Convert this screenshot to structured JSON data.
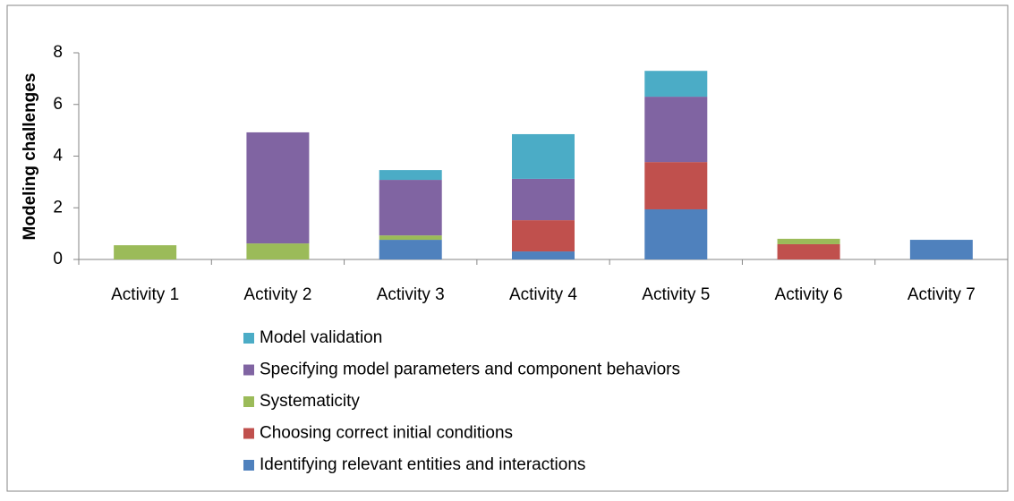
{
  "chart_data": {
    "type": "stacked_bar",
    "y_label": "Modeling challenges",
    "categories": [
      "Activity 1",
      "Activity 2",
      "Activity 3",
      "Activity 4",
      "Activity 5",
      "Activity 6",
      "Activity 7"
    ],
    "series": [
      {
        "name": "Identifying relevant entities and interactions",
        "color": "#4f81bd",
        "values": [
          0,
          0,
          0.76,
          0.31,
          1.94,
          0,
          0.76
        ]
      },
      {
        "name": "Choosing correct initial conditions",
        "color": "#c0504d",
        "values": [
          0,
          0,
          0,
          1.21,
          1.83,
          0.59,
          0
        ]
      },
      {
        "name": "Systematicity",
        "color": "#9bbb59",
        "values": [
          0.55,
          0.62,
          0.17,
          0,
          0,
          0.21,
          0
        ]
      },
      {
        "name": "Specifying model parameters and component behaviors",
        "color": "#8064a2",
        "values": [
          0,
          4.3,
          2.15,
          1.6,
          2.53,
          0,
          0
        ]
      },
      {
        "name": "Model validation",
        "color": "#4bacc6",
        "values": [
          0,
          0,
          0.38,
          1.73,
          1.0,
          0,
          0
        ]
      }
    ],
    "ylim": [
      0,
      8
    ],
    "yticks": [
      0,
      2,
      4,
      6,
      8
    ],
    "grid": false
  }
}
